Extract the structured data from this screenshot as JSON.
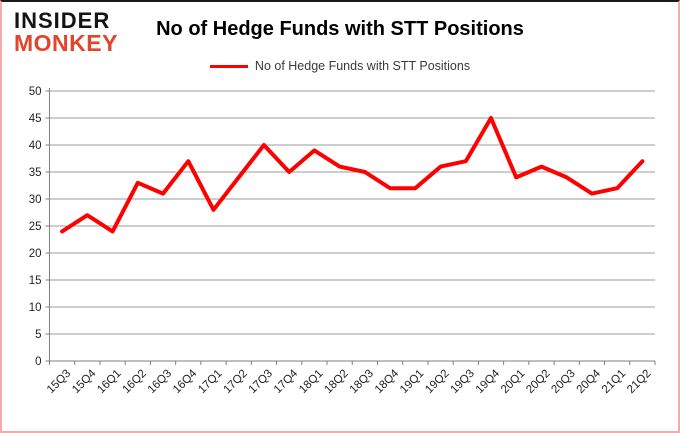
{
  "branding": {
    "logo_line1": "INSIDER",
    "logo_line2": "MONKEY",
    "logo_color_primary": "#141414",
    "logo_color_accent": "#e2452e"
  },
  "header": {
    "title": "No of Hedge Funds with STT Positions"
  },
  "legend": {
    "label": "No of Hedge Funds with STT Positions",
    "line_color": "#ff0000"
  },
  "chart_data": {
    "type": "line",
    "title": "No of Hedge Funds with STT Positions",
    "series_name": "No of Hedge Funds with STT Positions",
    "categories": [
      "15Q3",
      "15Q4",
      "16Q1",
      "16Q2",
      "16Q3",
      "16Q4",
      "17Q1",
      "17Q2",
      "17Q3",
      "17Q4",
      "18Q1",
      "18Q2",
      "18Q3",
      "18Q4",
      "19Q1",
      "19Q2",
      "19Q3",
      "19Q4",
      "20Q1",
      "20Q2",
      "20Q3",
      "20Q4",
      "21Q1",
      "21Q2"
    ],
    "values": [
      24,
      27,
      24,
      33,
      31,
      37,
      28,
      34,
      40,
      35,
      39,
      36,
      35,
      32,
      32,
      36,
      37,
      45,
      34,
      36,
      34,
      31,
      32,
      37
    ],
    "xlabel": "",
    "ylabel": "",
    "ylim": [
      0,
      50
    ],
    "y_ticks": [
      0,
      5,
      10,
      15,
      20,
      25,
      30,
      35,
      40,
      45,
      50
    ],
    "grid": true,
    "legend_position": "top",
    "line_color": "#ff0000",
    "grid_color": "#9b9b9b",
    "axis_color": "#7f7f7f",
    "tick_label_color": "#1f1f1f"
  }
}
